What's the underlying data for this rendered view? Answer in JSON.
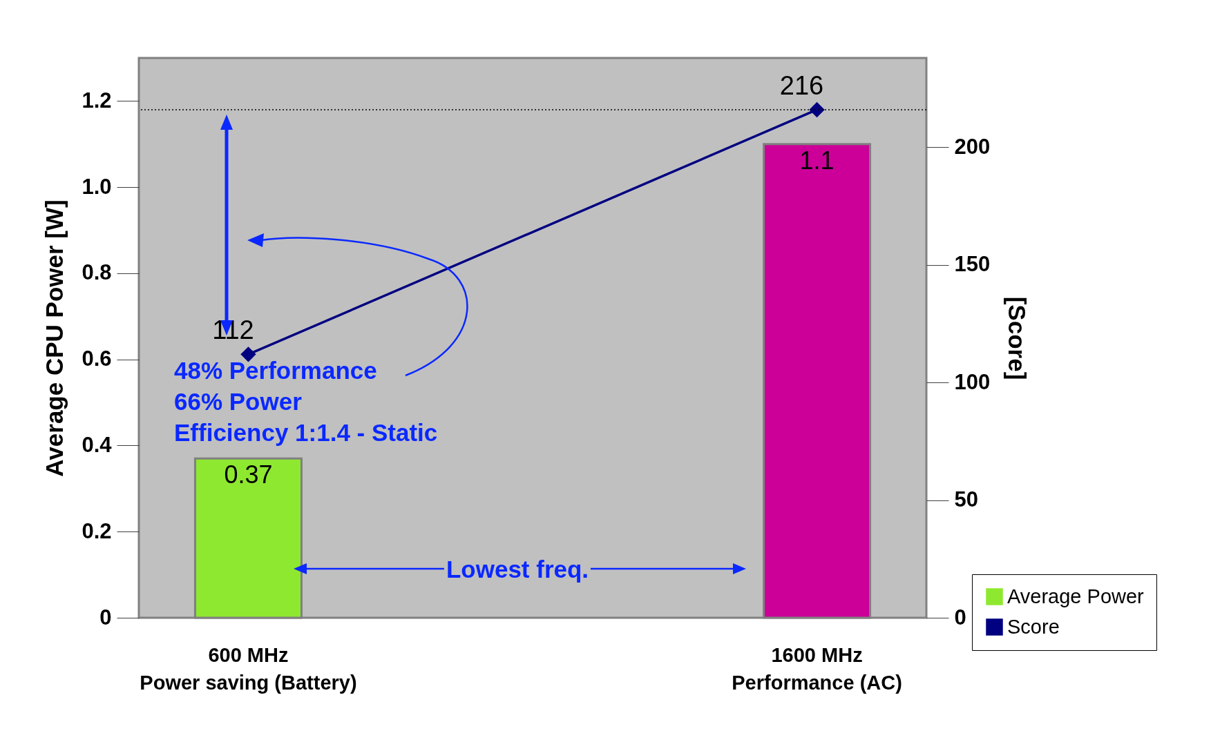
{
  "chart_data": {
    "type": "bar",
    "categories": [
      "600 MHz\nPower saving (Battery)",
      "1600 MHz\nPerformance (AC)"
    ],
    "series": [
      {
        "name": "Average Power",
        "color": "#8fe830",
        "colors": [
          "#8fe830",
          "#cc0099"
        ],
        "values": [
          0.37,
          1.1
        ]
      },
      {
        "name": "Score",
        "type": "line",
        "axis": "y2",
        "color": "#000080",
        "values": [
          112,
          216
        ]
      }
    ],
    "ylabel": "Average CPU Power  [W]",
    "y2label": "[Score]",
    "ylim": [
      0,
      1.3
    ],
    "yticks": [
      0,
      0.2,
      0.4,
      0.6,
      0.8,
      {
        "value": 1,
        "label": "1.0"
      },
      1.2
    ],
    "y2lim": [
      0,
      238
    ],
    "y2ticks": [
      0,
      50,
      100,
      150,
      200
    ],
    "data_labels": true,
    "marker": "diamond",
    "line_style": "solid",
    "grid": false,
    "legend": "bottom right",
    "ref_lines": [
      {
        "axis": "y2",
        "value": 216,
        "line_style": "dotted",
        "color": "#000000"
      }
    ],
    "annotations": [
      "48% Performance",
      "66% Power",
      "Efficiency 1:1.4 - Static",
      "Lowest freq."
    ]
  }
}
